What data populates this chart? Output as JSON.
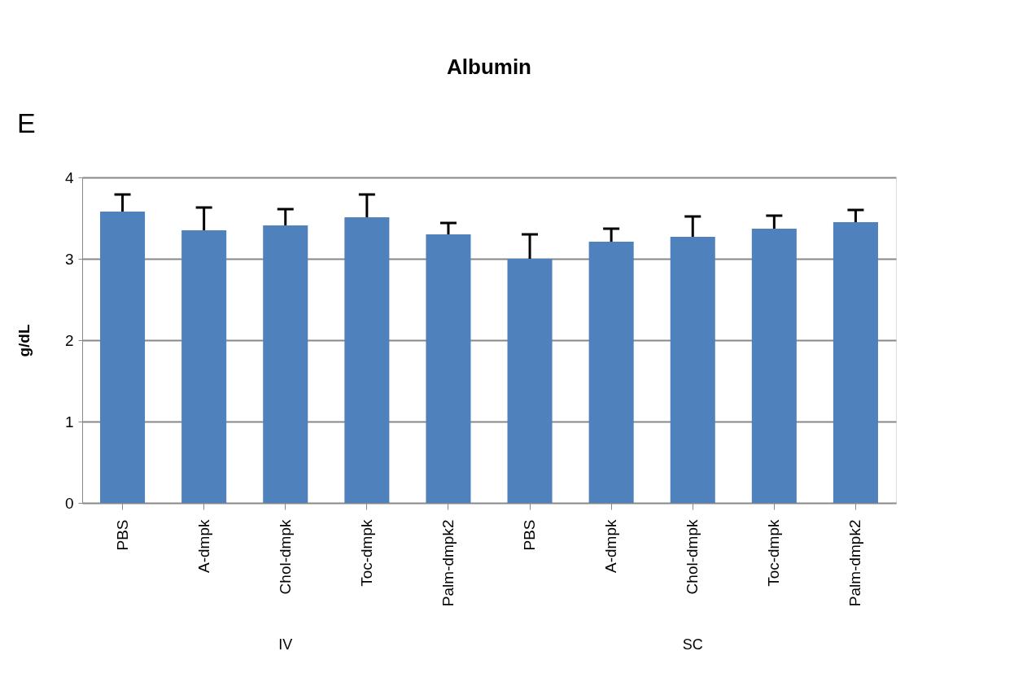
{
  "chart_data": {
    "type": "bar",
    "title": "Albumin",
    "ylabel": "g/dL",
    "categories": [
      "PBS",
      "A-dmpk",
      "Chol-dmpk",
      "Toc-dmpk",
      "Palm-dmpk2",
      "PBS",
      "A-dmpk",
      "Chol-dmpk",
      "Toc-dmpk",
      "Palm-dmpk2"
    ],
    "values": [
      3.58,
      3.35,
      3.41,
      3.51,
      3.3,
      3.0,
      3.21,
      3.27,
      3.37,
      3.45
    ],
    "errors": [
      [
        3.58,
        3.79
      ],
      [
        3.35,
        3.63
      ],
      [
        3.41,
        3.61
      ],
      [
        3.51,
        3.79
      ],
      [
        3.3,
        3.44
      ],
      [
        3.0,
        3.3
      ],
      [
        3.21,
        3.37
      ],
      [
        3.27,
        3.52
      ],
      [
        3.37,
        3.53
      ],
      [
        3.45,
        3.6
      ]
    ],
    "color": "#4f81bd",
    "ylim": [
      0,
      4
    ],
    "yticks": [
      0,
      1,
      2,
      3,
      4
    ],
    "grid": "y",
    "annotations": [
      "E",
      "IV",
      "SC"
    ]
  }
}
